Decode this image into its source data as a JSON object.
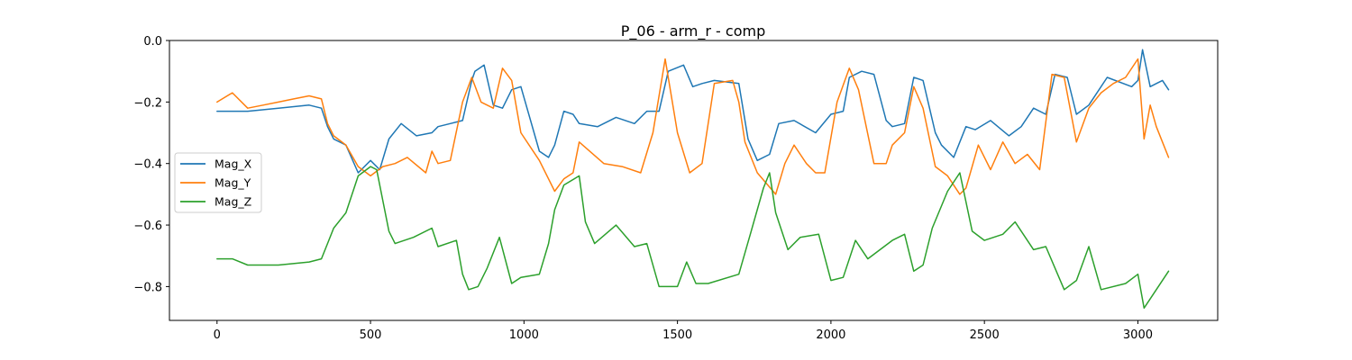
{
  "chart_data": {
    "type": "line",
    "title": "P_06 - arm_r - comp",
    "xlabel": "",
    "ylabel": "",
    "xlim": [
      -155,
      3260
    ],
    "ylim": [
      -0.91,
      0.0
    ],
    "xticks": [
      0,
      500,
      1000,
      1500,
      2000,
      2500,
      3000
    ],
    "xtick_labels": [
      "0",
      "500",
      "1000",
      "1500",
      "2000",
      "2500",
      "3000"
    ],
    "yticks": [
      0.0,
      -0.2,
      -0.4,
      -0.6,
      -0.8
    ],
    "ytick_labels": [
      "0.0",
      "−0.2",
      "−0.4",
      "−0.6",
      "−0.8"
    ],
    "grid": false,
    "legend_position": "center-left",
    "series": [
      {
        "name": "Mag_X",
        "color": "#1f77b4",
        "x": [
          0,
          100,
          200,
          300,
          340,
          360,
          380,
          420,
          460,
          500,
          530,
          560,
          600,
          650,
          700,
          720,
          760,
          800,
          830,
          840,
          870,
          900,
          930,
          960,
          990,
          1050,
          1080,
          1100,
          1130,
          1160,
          1180,
          1240,
          1300,
          1360,
          1400,
          1440,
          1470,
          1520,
          1550,
          1580,
          1620,
          1700,
          1730,
          1760,
          1800,
          1830,
          1880,
          1950,
          2000,
          2040,
          2060,
          2100,
          2140,
          2180,
          2200,
          2240,
          2270,
          2300,
          2340,
          2360,
          2400,
          2440,
          2470,
          2520,
          2580,
          2620,
          2660,
          2700,
          2730,
          2770,
          2800,
          2840,
          2900,
          2980,
          3000,
          3015,
          3040,
          3060,
          3080,
          3100
        ],
        "values": [
          -0.23,
          -0.23,
          -0.22,
          -0.21,
          -0.22,
          -0.28,
          -0.32,
          -0.34,
          -0.43,
          -0.39,
          -0.42,
          -0.32,
          -0.27,
          -0.31,
          -0.3,
          -0.28,
          -0.27,
          -0.26,
          -0.13,
          -0.1,
          -0.08,
          -0.21,
          -0.22,
          -0.16,
          -0.15,
          -0.36,
          -0.38,
          -0.34,
          -0.23,
          -0.24,
          -0.27,
          -0.28,
          -0.25,
          -0.27,
          -0.23,
          -0.23,
          -0.1,
          -0.08,
          -0.15,
          -0.14,
          -0.13,
          -0.14,
          -0.32,
          -0.39,
          -0.37,
          -0.27,
          -0.26,
          -0.3,
          -0.24,
          -0.23,
          -0.12,
          -0.1,
          -0.11,
          -0.26,
          -0.28,
          -0.27,
          -0.12,
          -0.13,
          -0.3,
          -0.34,
          -0.38,
          -0.28,
          -0.29,
          -0.26,
          -0.31,
          -0.28,
          -0.22,
          -0.24,
          -0.11,
          -0.12,
          -0.24,
          -0.21,
          -0.12,
          -0.15,
          -0.13,
          -0.03,
          -0.15,
          -0.14,
          -0.13,
          -0.16
        ]
      },
      {
        "name": "Mag_Y",
        "color": "#ff7f0e",
        "x": [
          0,
          50,
          100,
          150,
          200,
          250,
          300,
          340,
          360,
          380,
          420,
          460,
          500,
          540,
          580,
          620,
          680,
          700,
          720,
          760,
          800,
          830,
          860,
          900,
          930,
          960,
          990,
          1050,
          1080,
          1100,
          1130,
          1160,
          1180,
          1260,
          1320,
          1380,
          1420,
          1460,
          1500,
          1540,
          1580,
          1620,
          1680,
          1700,
          1720,
          1760,
          1820,
          1850,
          1880,
          1920,
          1950,
          1980,
          2020,
          2060,
          2090,
          2140,
          2180,
          2200,
          2240,
          2270,
          2300,
          2340,
          2380,
          2420,
          2440,
          2480,
          2520,
          2560,
          2600,
          2640,
          2680,
          2720,
          2760,
          2800,
          2840,
          2880,
          2920,
          2960,
          3000,
          3020,
          3040,
          3060,
          3080,
          3100
        ],
        "values": [
          -0.2,
          -0.17,
          -0.22,
          -0.21,
          -0.2,
          -0.19,
          -0.18,
          -0.19,
          -0.27,
          -0.31,
          -0.34,
          -0.41,
          -0.44,
          -0.41,
          -0.4,
          -0.38,
          -0.43,
          -0.36,
          -0.4,
          -0.39,
          -0.2,
          -0.12,
          -0.2,
          -0.22,
          -0.09,
          -0.13,
          -0.3,
          -0.39,
          -0.45,
          -0.49,
          -0.45,
          -0.43,
          -0.33,
          -0.4,
          -0.41,
          -0.43,
          -0.3,
          -0.06,
          -0.3,
          -0.43,
          -0.4,
          -0.14,
          -0.13,
          -0.2,
          -0.33,
          -0.43,
          -0.5,
          -0.4,
          -0.34,
          -0.4,
          -0.43,
          -0.43,
          -0.2,
          -0.09,
          -0.16,
          -0.4,
          -0.4,
          -0.34,
          -0.3,
          -0.15,
          -0.22,
          -0.41,
          -0.44,
          -0.5,
          -0.48,
          -0.34,
          -0.42,
          -0.33,
          -0.4,
          -0.37,
          -0.42,
          -0.11,
          -0.12,
          -0.33,
          -0.22,
          -0.17,
          -0.14,
          -0.12,
          -0.06,
          -0.32,
          -0.21,
          -0.28,
          -0.33,
          -0.38
        ]
      },
      {
        "name": "Mag_Z",
        "color": "#2ca02c",
        "x": [
          0,
          50,
          100,
          200,
          300,
          340,
          360,
          380,
          420,
          460,
          500,
          520,
          560,
          580,
          640,
          700,
          720,
          780,
          800,
          820,
          850,
          880,
          920,
          960,
          990,
          1050,
          1080,
          1100,
          1130,
          1180,
          1200,
          1230,
          1300,
          1360,
          1400,
          1440,
          1500,
          1530,
          1560,
          1600,
          1700,
          1740,
          1780,
          1800,
          1820,
          1860,
          1900,
          1960,
          2000,
          2040,
          2080,
          2120,
          2200,
          2240,
          2270,
          2300,
          2330,
          2380,
          2420,
          2460,
          2500,
          2560,
          2600,
          2660,
          2700,
          2760,
          2800,
          2840,
          2880,
          2960,
          3000,
          3020,
          3060,
          3100
        ],
        "values": [
          -0.71,
          -0.71,
          -0.73,
          -0.73,
          -0.72,
          -0.71,
          -0.66,
          -0.61,
          -0.56,
          -0.44,
          -0.41,
          -0.42,
          -0.62,
          -0.66,
          -0.64,
          -0.61,
          -0.67,
          -0.65,
          -0.76,
          -0.81,
          -0.8,
          -0.74,
          -0.64,
          -0.79,
          -0.77,
          -0.76,
          -0.66,
          -0.55,
          -0.47,
          -0.44,
          -0.59,
          -0.66,
          -0.6,
          -0.67,
          -0.66,
          -0.8,
          -0.8,
          -0.72,
          -0.79,
          -0.79,
          -0.76,
          -0.62,
          -0.48,
          -0.43,
          -0.56,
          -0.68,
          -0.64,
          -0.63,
          -0.78,
          -0.77,
          -0.65,
          -0.71,
          -0.65,
          -0.63,
          -0.75,
          -0.73,
          -0.61,
          -0.49,
          -0.43,
          -0.62,
          -0.65,
          -0.63,
          -0.59,
          -0.68,
          -0.67,
          -0.81,
          -0.78,
          -0.67,
          -0.81,
          -0.79,
          -0.76,
          -0.87,
          -0.81,
          -0.75
        ]
      }
    ]
  }
}
